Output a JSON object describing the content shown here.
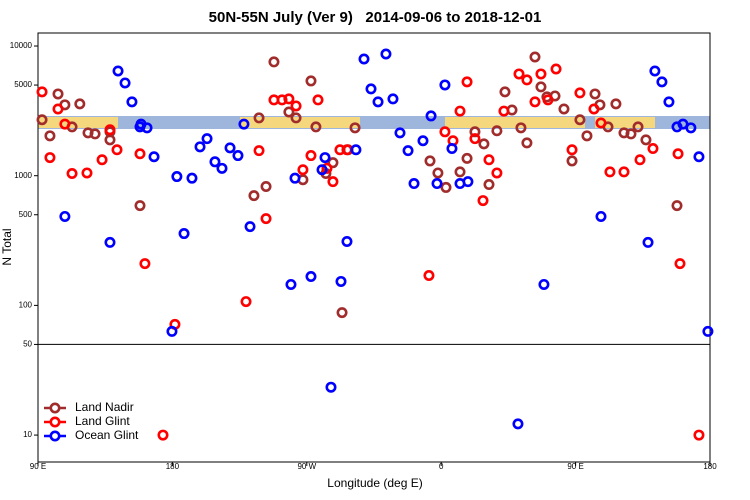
{
  "chart_data": {
    "type": "scatter",
    "title": "50N-55N July (Ver 9)   2014-09-06 to 2018-12-01",
    "x_label": "Longitude (deg E)",
    "y_label": "N Total",
    "log_y": true,
    "legend": "bottom-left",
    "xlim": [
      90,
      540
    ],
    "ylim": [
      6.2,
      12600
    ],
    "xticks": [
      {
        "value": 90,
        "label": "90 E"
      },
      180,
      {
        "value": 270,
        "label": "90 W"
      },
      {
        "value": 360,
        "label": "0"
      },
      {
        "value": 450,
        "label": "90 E"
      },
      {
        "value": 540,
        "label": "180"
      }
    ],
    "yticks": [
      10,
      50,
      100,
      500,
      1000,
      5000,
      10000
    ],
    "hline": 50,
    "series": [
      {
        "name": "Land Nadir",
        "color": "#a02c2c",
        "x": [
          92.7,
          98,
          103.4,
          108,
          112.8,
          118,
          123.5,
          128.2,
          138.2,
          138.2,
          158.3,
          234.6,
          238,
          242.7,
          248,
          258,
          262.8,
          267.4,
          272.8,
          276.1,
          282.8,
          287.5,
          293.6,
          297.6,
          302.3,
          352.5,
          357.8,
          363.2,
          372.6,
          377.3,
          382.6,
          388.6,
          392,
          397.3,
          402.7,
          407.4,
          413.4,
          417.4,
          422.8,
          426.8,
          430.8,
          436.2,
          442.2,
          447.6,
          452.9,
          457.6,
          463,
          466.3,
          471.7,
          477,
          482.4,
          487.1,
          491.8,
          497.1,
          517.9
        ],
        "values": [
          2700,
          2030,
          4270,
          3520,
          2380,
          3580,
          2140,
          2100,
          2180,
          1890,
          588,
          702,
          2790,
          826,
          7540,
          3100,
          2790,
          931,
          5380,
          2380,
          1040,
          1260,
          88,
          1585,
          2340,
          1300,
          1050,
          812,
          1070,
          1360,
          2180,
          1760,
          855,
          2220,
          4430,
          3210,
          2340,
          1790,
          8230,
          4840,
          4050,
          4120,
          3270,
          1300,
          2700,
          2030,
          4270,
          3520,
          2380,
          3580,
          2140,
          2100,
          2380,
          1890,
          588
        ]
      },
      {
        "name": "Land Glint",
        "color": "#ff0000",
        "x": [
          92.7,
          98,
          103.4,
          108,
          112.8,
          122.8,
          132.9,
          138.2,
          142.9,
          158.3,
          161.6,
          173.7,
          181.7,
          229.3,
          238,
          242.7,
          248,
          253.4,
          258,
          262.8,
          267.4,
          272.8,
          277.5,
          283.5,
          287.5,
          292.2,
          296.9,
          351.8,
          362.5,
          367.9,
          372.6,
          377.3,
          382.6,
          388,
          392,
          397.3,
          402,
          412.1,
          417.4,
          422.8,
          426.8,
          431.5,
          436.9,
          447.6,
          452.9,
          462.3,
          467,
          473,
          482.4,
          493.1,
          501.8,
          518.6,
          519.9,
          532.6
        ],
        "values": [
          4430,
          1380,
          3270,
          2500,
          1040,
          1050,
          1327,
          2260,
          1585,
          1476,
          210,
          10,
          71.4,
          107,
          1560,
          467,
          3840,
          3840,
          3910,
          3450,
          1112,
          1430,
          3840,
          1140,
          900,
          1585,
          1585,
          170,
          2180,
          1860,
          3150,
          5290,
          1930,
          643,
          1327,
          1050,
          3150,
          6090,
          5480,
          3710,
          6090,
          3840,
          6650,
          1585,
          4350,
          3270,
          2550,
          1070,
          1070,
          1327,
          1620,
          1476,
          210,
          10
        ]
      },
      {
        "name": "Ocean Glint",
        "color": "#0000ff",
        "x": [
          108,
          138.2,
          143.6,
          148.3,
          152.9,
          158.3,
          159,
          163,
          167.7,
          179.7,
          183,
          187.8,
          193.1,
          198.5,
          203.2,
          208.5,
          213.2,
          218.6,
          223.9,
          227.9,
          232,
          259.4,
          262.1,
          272.8,
          280.2,
          282.2,
          286.2,
          292.9,
          296.9,
          302.9,
          308.3,
          313,
          317.7,
          323,
          327.7,
          332.4,
          337.8,
          341.8,
          347.8,
          353.2,
          357.2,
          362.5,
          367.2,
          372.6,
          377.9,
          411.4,
          428.8,
          467,
          498.5,
          503.1,
          507.8,
          512.5,
          517.9,
          521.9,
          527.2,
          532.6,
          538.6
        ],
        "values": [
          485,
          306,
          6420,
          5190,
          3710,
          2380,
          2500,
          2340,
          1400,
          63,
          985,
          358,
          957,
          1670,
          1930,
          1280,
          1140,
          1640,
          1430,
          2500,
          405,
          145,
          957,
          167,
          1112,
          1380,
          23.4,
          153,
          311,
          1585,
          7940,
          4670,
          3710,
          8680,
          3910,
          2140,
          1560,
          870,
          1860,
          2890,
          870,
          5010,
          1620,
          870,
          900,
          12.2,
          145,
          485,
          306,
          6420,
          5290,
          3710,
          2380,
          2500,
          2340,
          1400,
          63
        ]
      }
    ]
  }
}
